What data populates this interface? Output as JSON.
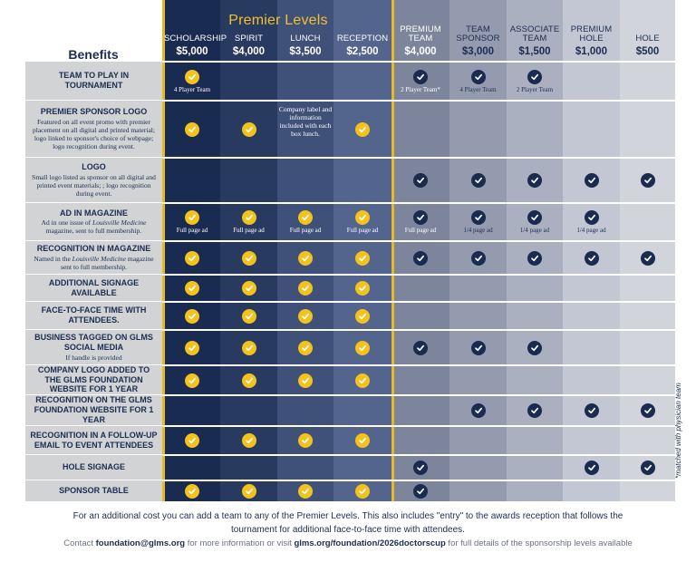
{
  "premier_title": "Premier Levels",
  "benefits_heading": "Benefits",
  "columns": [
    {
      "name": "SCHOLARSHIP",
      "price": "$5,000"
    },
    {
      "name": "SPIRIT",
      "price": "$4,000"
    },
    {
      "name": "LUNCH",
      "price": "$3,500"
    },
    {
      "name": "RECEPTION",
      "price": "$2,500"
    },
    {
      "name": "PREMIUM TEAM",
      "price": "$4,000"
    },
    {
      "name": "TEAM SPONSOR",
      "price": "$3,000"
    },
    {
      "name": "ASSOCIATE TEAM",
      "price": "$1,500"
    },
    {
      "name": "PREMIUM HOLE",
      "price": "$1,000"
    },
    {
      "name": "HOLE",
      "price": "$500"
    }
  ],
  "rows": [
    {
      "title": "TEAM TO PLAY IN TOURNAMENT",
      "desc": "",
      "checks": [
        1,
        0,
        0,
        0,
        1,
        1,
        1,
        0,
        0
      ],
      "captions": [
        "4 Player Team",
        "",
        "",
        "",
        "2 Player Team*",
        "4 Player Team",
        "2 Player Team",
        "",
        ""
      ]
    },
    {
      "title": "PREMIER SPONSOR LOGO",
      "desc": "Featured on all event promo with premier placement on all digital and printed material; logo linked to sponsor's choice of webpage; logo recognition during event.",
      "checks": [
        1,
        1,
        0,
        1,
        0,
        0,
        0,
        0,
        0
      ],
      "captions": [
        "",
        "",
        "",
        "",
        "",
        "",
        "",
        "",
        ""
      ],
      "lunch_note": "Company label and information included with each box lunch."
    },
    {
      "title": "LOGO",
      "desc": "Small logo listed as sponsor on all digital and printed event materials; ; logo recognition during event.",
      "checks": [
        0,
        0,
        0,
        0,
        1,
        1,
        1,
        1,
        1
      ],
      "captions": [
        "",
        "",
        "",
        "",
        "",
        "",
        "",
        "",
        ""
      ]
    },
    {
      "title": "AD IN MAGAZINE",
      "desc": "Ad in one issue of Louisville Medicine magazine, sent to full membership.",
      "checks": [
        1,
        1,
        1,
        1,
        1,
        1,
        1,
        1,
        0
      ],
      "captions": [
        "Full page ad",
        "Full page ad",
        "Full page ad",
        "Full page ad",
        "Full page ad",
        "1/4 page ad",
        "1/4 page ad",
        "1/4 page ad",
        ""
      ]
    },
    {
      "title": "RECOGNITION IN MAGAZINE",
      "desc": "Named in the Louisville Medicine magazine sent to full membership.",
      "checks": [
        1,
        1,
        1,
        1,
        1,
        1,
        1,
        1,
        1
      ],
      "captions": [
        "",
        "",
        "",
        "",
        "",
        "",
        "",
        "",
        ""
      ]
    },
    {
      "title": "ADDITIONAL SIGNAGE AVAILABLE",
      "desc": "",
      "checks": [
        1,
        1,
        1,
        1,
        0,
        0,
        0,
        0,
        0
      ],
      "captions": [
        "",
        "",
        "",
        "",
        "",
        "",
        "",
        "",
        ""
      ]
    },
    {
      "title": "FACE-TO-FACE TIME WITH ATTENDEES.",
      "desc": "",
      "checks": [
        1,
        1,
        1,
        1,
        0,
        0,
        0,
        0,
        0
      ],
      "captions": [
        "",
        "",
        "",
        "",
        "",
        "",
        "",
        "",
        ""
      ]
    },
    {
      "title": "BUSINESS TAGGED ON GLMS SOCIAL MEDIA",
      "desc": "If handle is provided",
      "checks": [
        1,
        1,
        1,
        1,
        1,
        1,
        1,
        0,
        0
      ],
      "captions": [
        "",
        "",
        "",
        "",
        "",
        "",
        "",
        "",
        ""
      ]
    },
    {
      "title": "COMPANY LOGO ADDED TO THE GLMS FOUNDATION WEBSITE FOR 1 YEAR",
      "desc": "",
      "checks": [
        1,
        1,
        1,
        1,
        0,
        0,
        0,
        0,
        0
      ],
      "captions": [
        "",
        "",
        "",
        "",
        "",
        "",
        "",
        "",
        ""
      ]
    },
    {
      "title": "RECOGNITION ON THE GLMS FOUNDATION WEBSITE FOR 1 YEAR",
      "desc": "",
      "checks": [
        0,
        0,
        0,
        0,
        0,
        1,
        1,
        1,
        1
      ],
      "captions": [
        "",
        "",
        "",
        "",
        "",
        "",
        "",
        "",
        ""
      ]
    },
    {
      "title": "RECOGNITION IN A FOLLOW-UP EMAIL TO EVENT ATTENDEES",
      "desc": "",
      "checks": [
        1,
        1,
        1,
        1,
        0,
        0,
        0,
        0,
        0
      ],
      "captions": [
        "",
        "",
        "",
        "",
        "",
        "",
        "",
        "",
        ""
      ]
    },
    {
      "title": "HOLE SIGNAGE",
      "desc": "",
      "checks": [
        0,
        0,
        0,
        0,
        1,
        0,
        0,
        1,
        1
      ],
      "captions": [
        "",
        "",
        "",
        "",
        "",
        "",
        "",
        "",
        ""
      ]
    },
    {
      "title": "SPONSOR TABLE",
      "desc": "",
      "checks": [
        1,
        1,
        1,
        1,
        1,
        0,
        0,
        0,
        0
      ],
      "captions": [
        "",
        "",
        "",
        "",
        "",
        "",
        "",
        "",
        ""
      ]
    }
  ],
  "side_note": "*matched with physician team",
  "footer_line1": "For an additional cost you can add a team to any of the Premier Levels. This also includes \"entry\" to the awards reception that follows the tournament for additional face-to-face time with attendees.",
  "footer_contact": {
    "pre": "Contact ",
    "email": "foundation@glms.org",
    "mid": " for more information or visit ",
    "url": "glms.org/foundation/2026doctorscup",
    "post": " for full details of the sponsorship levels available"
  },
  "colors": {
    "col_bg": [
      "#1a2b52",
      "#293a61",
      "#3f5079",
      "#54658d",
      "#7d859c",
      "#959bae",
      "#abb0c0",
      "#c3c7d3",
      "#d2d4dc"
    ],
    "benefit_bg": "#d1d3d4",
    "gold": "#f3c21d",
    "navy": "#1b2a4f"
  }
}
